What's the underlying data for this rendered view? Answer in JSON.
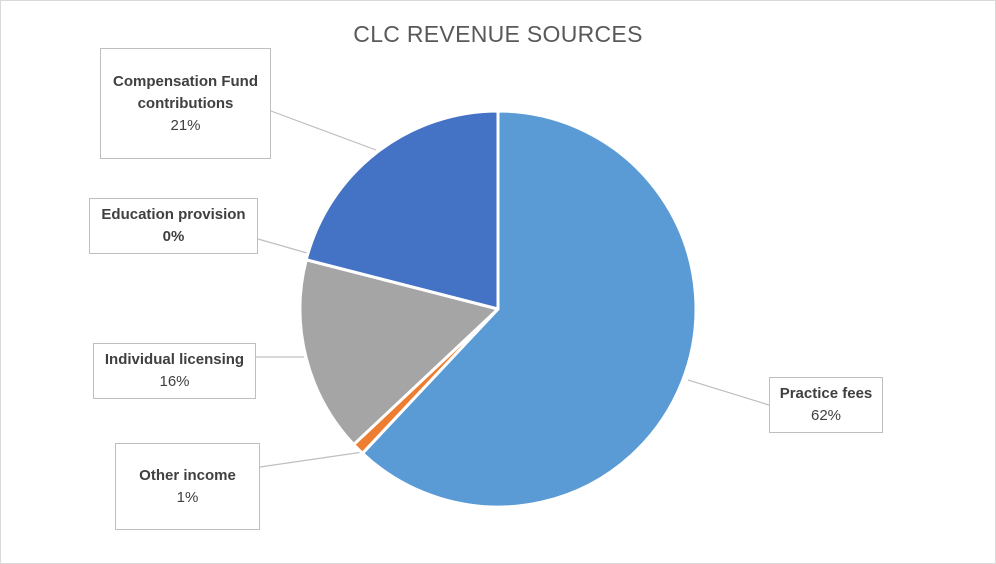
{
  "chart_data": {
    "type": "pie",
    "title": "CLC REVENUE SOURCES",
    "slices": [
      {
        "label": "Practice fees",
        "value": 62,
        "display": "62%",
        "color": "#5b9bd5"
      },
      {
        "label": "Other income",
        "value": 1,
        "display": "1%",
        "color": "#ed7d31"
      },
      {
        "label": "Individual licensing",
        "value": 16,
        "display": "16%",
        "color": "#a5a5a5"
      },
      {
        "label": "Education provision",
        "value": 0,
        "display": "0%",
        "color": "#ffc000"
      },
      {
        "label": "Compensation Fund contributions",
        "value": 21,
        "display": "21%",
        "color": "#4472c4"
      }
    ],
    "legend": "none",
    "data_labels": "callouts"
  }
}
